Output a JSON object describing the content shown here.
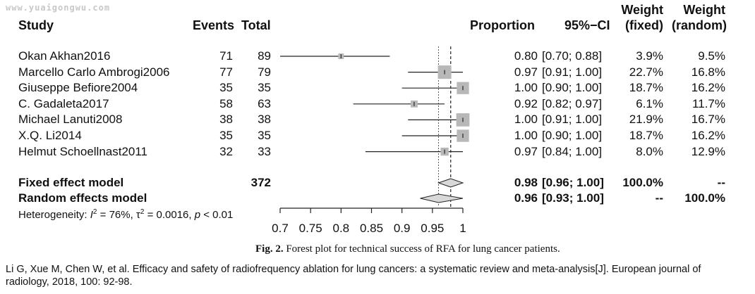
{
  "watermark": "www.yuaigongwu.com",
  "headers": {
    "study": "Study",
    "events": "Events",
    "total": "Total",
    "proportion": "Proportion",
    "ci": "95%−CI",
    "weight_fixed_1": "Weight",
    "weight_fixed_2": "(fixed)",
    "weight_random_1": "Weight",
    "weight_random_2": "(random)"
  },
  "chart_data": {
    "type": "forest",
    "xlim": [
      0.7,
      1.0
    ],
    "ticks": [
      0.7,
      0.75,
      0.8,
      0.85,
      0.9,
      0.95,
      1
    ],
    "tick_labels": [
      "0.7",
      "0.75",
      "0.8",
      "0.85",
      "0.9",
      "0.95",
      "1"
    ],
    "fixed_line": 0.98,
    "random_line": 0.96,
    "studies": [
      {
        "study": "Okan Akhan2016",
        "events": "71",
        "total": "89",
        "proportion": 0.8,
        "lower": 0.7,
        "upper": 0.88,
        "prop_text": "0.80",
        "ci_text": "[0.70; 0.88]",
        "w_fixed": "3.9%",
        "w_random": "9.5%",
        "weight": 3.9
      },
      {
        "study": "Marcello Carlo Ambrogi2006",
        "events": "77",
        "total": "79",
        "proportion": 0.97,
        "lower": 0.91,
        "upper": 1.0,
        "prop_text": "0.97",
        "ci_text": "[0.91; 1.00]",
        "w_fixed": "22.7%",
        "w_random": "16.8%",
        "weight": 22.7
      },
      {
        "study": "Giuseppe Befiore2004",
        "events": "35",
        "total": "35",
        "proportion": 1.0,
        "lower": 0.9,
        "upper": 1.0,
        "prop_text": "1.00",
        "ci_text": "[0.90; 1.00]",
        "w_fixed": "18.7%",
        "w_random": "16.2%",
        "weight": 18.7
      },
      {
        "study": "C. Gadaleta2017",
        "events": "58",
        "total": "63",
        "proportion": 0.92,
        "lower": 0.82,
        "upper": 0.97,
        "prop_text": "0.92",
        "ci_text": "[0.82; 0.97]",
        "w_fixed": "6.1%",
        "w_random": "11.7%",
        "weight": 6.1
      },
      {
        "study": "Michael Lanuti2008",
        "events": "38",
        "total": "38",
        "proportion": 1.0,
        "lower": 0.91,
        "upper": 1.0,
        "prop_text": "1.00",
        "ci_text": "[0.91; 1.00]",
        "w_fixed": "21.9%",
        "w_random": "16.7%",
        "weight": 21.9
      },
      {
        "study": "X.Q. Li2014",
        "events": "35",
        "total": "35",
        "proportion": 1.0,
        "lower": 0.9,
        "upper": 1.0,
        "prop_text": "1.00",
        "ci_text": "[0.90; 1.00]",
        "w_fixed": "18.7%",
        "w_random": "16.2%",
        "weight": 18.7
      },
      {
        "study": "Helmut Schoellnast2011",
        "events": "32",
        "total": "33",
        "proportion": 0.97,
        "lower": 0.84,
        "upper": 1.0,
        "prop_text": "0.97",
        "ci_text": "[0.84; 1.00]",
        "w_fixed": "8.0%",
        "w_random": "12.9%",
        "weight": 8.0
      }
    ],
    "fixed": {
      "label": "Fixed effect model",
      "total": "372",
      "estimate": 0.98,
      "lower": 0.96,
      "upper": 1.0,
      "prop_text": "0.98",
      "ci_text": "[0.96; 1.00]",
      "w_fixed": "100.0%",
      "w_random": "--"
    },
    "random": {
      "label": "Random effects model",
      "estimate": 0.96,
      "lower": 0.93,
      "upper": 1.0,
      "prop_text": "0.96",
      "ci_text": "[0.93; 1.00]",
      "w_fixed": "--",
      "w_random": "100.0%"
    },
    "heterogeneity": {
      "prefix": "Heterogeneity: ",
      "i2_sym": "I",
      "i2_text": " = 76%, ",
      "tau_sym": "τ",
      "tau_text": " = 0.0016, ",
      "p_sym": "p",
      "p_text": " < 0.01"
    }
  },
  "caption": {
    "label": "Fig. 2.",
    "text": " Forest plot for technical success of RFA for lung cancer patients."
  },
  "citation": "Li G, Xue M, Chen W, et al. Efficacy and safety of radiofrequency ablation for lung cancers: a systematic review and meta-analysis[J]. European journal of radiology, 2018, 100: 92-98."
}
